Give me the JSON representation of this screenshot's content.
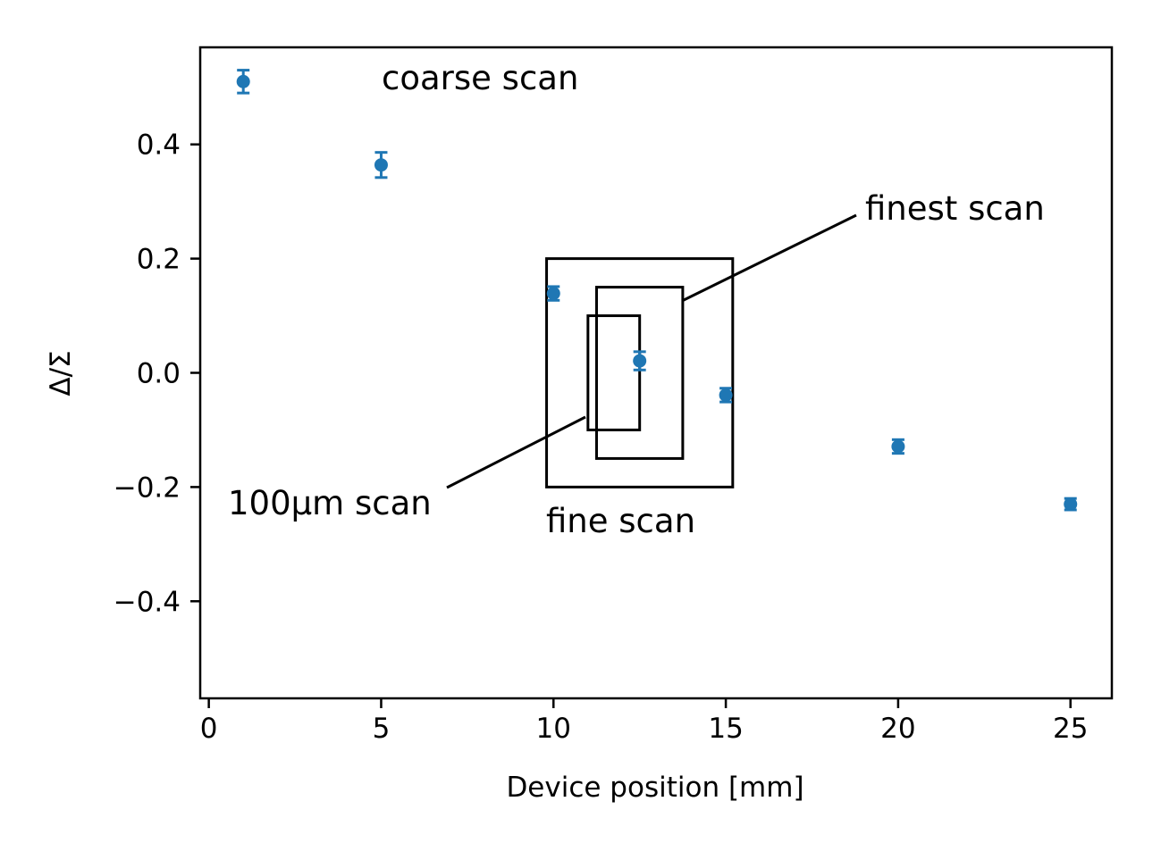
{
  "chart_data": {
    "type": "scatter",
    "xlabel": "Device position [mm]",
    "ylabel": "Δ/Σ",
    "xlim": [
      -0.25,
      26.2
    ],
    "ylim": [
      -0.57,
      0.57
    ],
    "xticks": [
      0,
      5,
      10,
      15,
      20,
      25
    ],
    "xtick_labels": [
      "0",
      "5",
      "10",
      "15",
      "20",
      "25"
    ],
    "yticks": [
      -0.4,
      -0.2,
      0.0,
      0.2,
      0.4
    ],
    "ytick_labels": [
      "−0.4",
      "−0.2",
      "0.0",
      "0.2",
      "0.4"
    ],
    "grid": false,
    "series": [
      {
        "color": "#1f77b4",
        "x": [
          1,
          5,
          10,
          12.5,
          15,
          20,
          25
        ],
        "y": [
          0.51,
          0.364,
          0.139,
          0.021,
          -0.039,
          -0.129,
          -0.23
        ],
        "yerr": [
          0.02,
          0.022,
          0.012,
          0.016,
          0.012,
          0.012,
          0.01
        ]
      }
    ],
    "regions": [
      {
        "x": [
          9.8,
          15.2
        ],
        "y": [
          -0.2,
          0.2
        ]
      },
      {
        "x": [
          11.25,
          13.75
        ],
        "y": [
          -0.15,
          0.15
        ]
      },
      {
        "x": [
          11.0,
          12.5
        ],
        "y": [
          -0.1,
          0.1
        ]
      }
    ],
    "annotations": [
      {
        "text": "coarse scan"
      },
      {
        "text": "finest scan"
      },
      {
        "text": "fine scan"
      },
      {
        "text": "100μm scan"
      }
    ]
  }
}
